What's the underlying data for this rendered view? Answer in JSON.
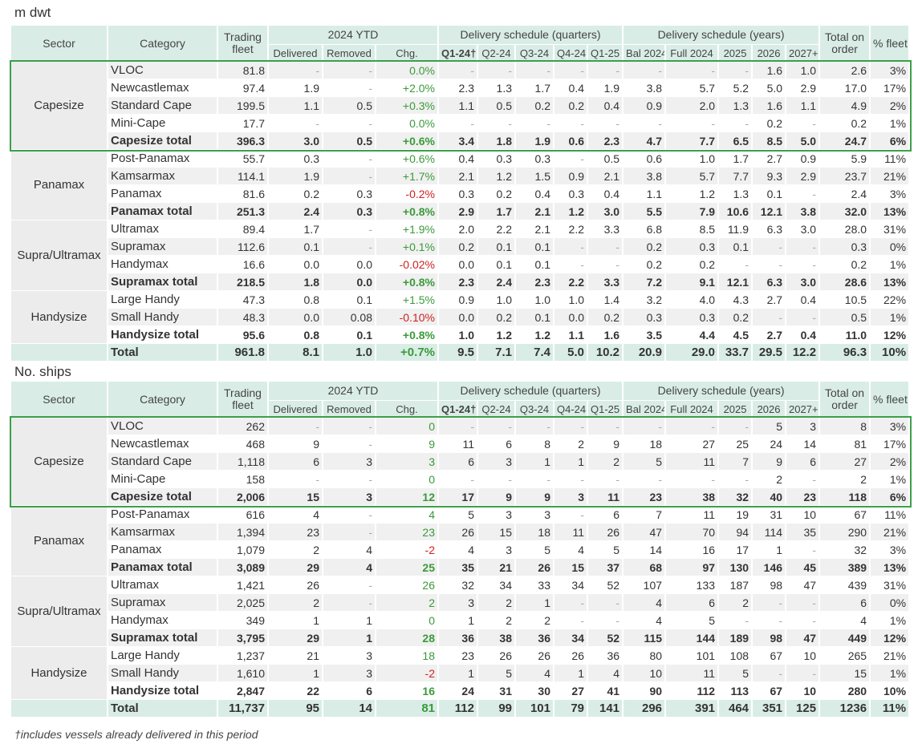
{
  "footnote": "†includes vessels already delivered in this period",
  "columns": {
    "sector": "Sector",
    "category": "Category",
    "trading": "Trading fleet",
    "ytd": "2024 YTD",
    "quarters": "Delivery schedule (quarters)",
    "years": "Delivery schedule (years)",
    "total_order": "Total on order",
    "pct": "% fleet",
    "sub": [
      "Delivered",
      "Removed",
      "Chg.",
      "Q1-24†",
      "Q2-24",
      "Q3-24",
      "Q4-24",
      "Q1-25",
      "Bal 2024",
      "Full 2024",
      "2025",
      "2026",
      "2027+"
    ]
  },
  "tables": [
    {
      "title": "m dwt",
      "groups": [
        {
          "sector": "Capesize",
          "rows": [
            {
              "category": "VLOC",
              "cells": [
                "81.8",
                "-",
                "-",
                "0.0%",
                "-",
                "-",
                "-",
                "-",
                "-",
                "-",
                "-",
                "-",
                "1.6",
                "1.0",
                "2.6",
                "3%"
              ]
            },
            {
              "category": "Newcastlemax",
              "cells": [
                "97.4",
                "1.9",
                "-",
                "+2.0%",
                "2.3",
                "1.3",
                "1.7",
                "0.4",
                "1.9",
                "3.8",
                "5.7",
                "5.2",
                "5.0",
                "2.9",
                "17.0",
                "17%"
              ]
            },
            {
              "category": "Standard Cape",
              "cells": [
                "199.5",
                "1.1",
                "0.5",
                "+0.3%",
                "1.1",
                "0.5",
                "0.2",
                "0.2",
                "0.4",
                "0.9",
                "2.0",
                "1.3",
                "1.6",
                "1.1",
                "4.9",
                "2%"
              ]
            },
            {
              "category": "Mini-Cape",
              "cells": [
                "17.7",
                "-",
                "-",
                "0.0%",
                "-",
                "-",
                "-",
                "-",
                "-",
                "-",
                "-",
                "-",
                "0.2",
                "-",
                "0.2",
                "1%"
              ]
            },
            {
              "category": "Capesize total",
              "cells": [
                "396.3",
                "3.0",
                "0.5",
                "+0.6%",
                "3.4",
                "1.8",
                "1.9",
                "0.6",
                "2.3",
                "4.7",
                "7.7",
                "6.5",
                "8.5",
                "5.0",
                "24.7",
                "6%"
              ]
            }
          ]
        },
        {
          "sector": "Panamax",
          "rows": [
            {
              "category": "Post-Panamax",
              "cells": [
                "55.7",
                "0.3",
                "-",
                "+0.6%",
                "0.4",
                "0.3",
                "0.3",
                "-",
                "0.5",
                "0.6",
                "1.0",
                "1.7",
                "2.7",
                "0.9",
                "5.9",
                "11%"
              ]
            },
            {
              "category": "Kamsarmax",
              "cells": [
                "114.1",
                "1.9",
                "-",
                "+1.7%",
                "2.1",
                "1.2",
                "1.5",
                "0.9",
                "2.1",
                "3.8",
                "5.7",
                "7.7",
                "9.3",
                "2.9",
                "23.7",
                "21%"
              ]
            },
            {
              "category": "Panamax",
              "cells": [
                "81.6",
                "0.2",
                "0.3",
                "-0.2%",
                "0.3",
                "0.2",
                "0.4",
                "0.3",
                "0.4",
                "1.1",
                "1.2",
                "1.3",
                "0.1",
                "-",
                "2.4",
                "3%"
              ]
            },
            {
              "category": "Panamax total",
              "cells": [
                "251.3",
                "2.4",
                "0.3",
                "+0.8%",
                "2.9",
                "1.7",
                "2.1",
                "1.2",
                "3.0",
                "5.5",
                "7.9",
                "10.6",
                "12.1",
                "3.8",
                "32.0",
                "13%"
              ]
            }
          ]
        },
        {
          "sector": "Supra/Ultramax",
          "rows": [
            {
              "category": "Ultramax",
              "cells": [
                "89.4",
                "1.7",
                "-",
                "+1.9%",
                "2.0",
                "2.2",
                "2.1",
                "2.2",
                "3.3",
                "6.8",
                "8.5",
                "11.9",
                "6.3",
                "3.0",
                "28.0",
                "31%"
              ]
            },
            {
              "category": "Supramax",
              "cells": [
                "112.6",
                "0.1",
                "-",
                "+0.1%",
                "0.2",
                "0.1",
                "0.1",
                "-",
                "-",
                "0.2",
                "0.3",
                "0.1",
                "-",
                "-",
                "0.3",
                "0%"
              ]
            },
            {
              "category": "Handymax",
              "cells": [
                "16.6",
                "0.0",
                "0.0",
                "-0.02%",
                "0.0",
                "0.1",
                "0.1",
                "-",
                "-",
                "0.2",
                "0.2",
                "-",
                "-",
                "-",
                "0.2",
                "1%"
              ]
            },
            {
              "category": "Supramax total",
              "cells": [
                "218.5",
                "1.8",
                "0.0",
                "+0.8%",
                "2.3",
                "2.4",
                "2.3",
                "2.2",
                "3.3",
                "7.2",
                "9.1",
                "12.1",
                "6.3",
                "3.0",
                "28.6",
                "13%"
              ]
            }
          ]
        },
        {
          "sector": "Handysize",
          "rows": [
            {
              "category": "Large Handy",
              "cells": [
                "47.3",
                "0.8",
                "0.1",
                "+1.5%",
                "0.9",
                "1.0",
                "1.0",
                "1.0",
                "1.4",
                "3.2",
                "4.0",
                "4.3",
                "2.7",
                "0.4",
                "10.5",
                "22%"
              ]
            },
            {
              "category": "Small Handy",
              "cells": [
                "48.3",
                "0.0",
                "0.08",
                "-0.10%",
                "0.0",
                "0.2",
                "0.1",
                "0.0",
                "0.2",
                "0.3",
                "0.3",
                "0.2",
                "-",
                "-",
                "0.5",
                "1%"
              ]
            },
            {
              "category": "Handysize total",
              "cells": [
                "95.6",
                "0.8",
                "0.1",
                "+0.8%",
                "1.0",
                "1.2",
                "1.2",
                "1.1",
                "1.6",
                "3.5",
                "4.4",
                "4.5",
                "2.7",
                "0.4",
                "11.0",
                "12%"
              ]
            }
          ]
        }
      ],
      "total": {
        "category": "Total",
        "cells": [
          "961.8",
          "8.1",
          "1.0",
          "+0.7%",
          "9.5",
          "7.1",
          "7.4",
          "5.0",
          "10.2",
          "20.9",
          "29.0",
          "33.7",
          "29.5",
          "12.2",
          "96.3",
          "10%"
        ]
      }
    },
    {
      "title": "No. ships",
      "groups": [
        {
          "sector": "Capesize",
          "rows": [
            {
              "category": "VLOC",
              "cells": [
                "262",
                "-",
                "-",
                "0",
                "-",
                "-",
                "-",
                "-",
                "-",
                "-",
                "-",
                "-",
                "5",
                "3",
                "8",
                "3%"
              ]
            },
            {
              "category": "Newcastlemax",
              "cells": [
                "468",
                "9",
                "-",
                "9",
                "11",
                "6",
                "8",
                "2",
                "9",
                "18",
                "27",
                "25",
                "24",
                "14",
                "81",
                "17%"
              ]
            },
            {
              "category": "Standard Cape",
              "cells": [
                "1,118",
                "6",
                "3",
                "3",
                "6",
                "3",
                "1",
                "1",
                "2",
                "5",
                "11",
                "7",
                "9",
                "6",
                "27",
                "2%"
              ]
            },
            {
              "category": "Mini-Cape",
              "cells": [
                "158",
                "-",
                "-",
                "0",
                "-",
                "-",
                "-",
                "-",
                "-",
                "-",
                "-",
                "-",
                "2",
                "-",
                "2",
                "1%"
              ]
            },
            {
              "category": "Capesize total",
              "cells": [
                "2,006",
                "15",
                "3",
                "12",
                "17",
                "9",
                "9",
                "3",
                "11",
                "23",
                "38",
                "32",
                "40",
                "23",
                "118",
                "6%"
              ]
            }
          ]
        },
        {
          "sector": "Panamax",
          "rows": [
            {
              "category": "Post-Panamax",
              "cells": [
                "616",
                "4",
                "-",
                "4",
                "5",
                "3",
                "3",
                "-",
                "6",
                "7",
                "11",
                "19",
                "31",
                "10",
                "67",
                "11%"
              ]
            },
            {
              "category": "Kamsarmax",
              "cells": [
                "1,394",
                "23",
                "-",
                "23",
                "26",
                "15",
                "18",
                "11",
                "26",
                "47",
                "70",
                "94",
                "114",
                "35",
                "290",
                "21%"
              ]
            },
            {
              "category": "Panamax",
              "cells": [
                "1,079",
                "2",
                "4",
                "-2",
                "4",
                "3",
                "5",
                "4",
                "5",
                "14",
                "16",
                "17",
                "1",
                "-",
                "32",
                "3%"
              ]
            },
            {
              "category": "Panamax total",
              "cells": [
                "3,089",
                "29",
                "4",
                "25",
                "35",
                "21",
                "26",
                "15",
                "37",
                "68",
                "97",
                "130",
                "146",
                "45",
                "389",
                "13%"
              ]
            }
          ]
        },
        {
          "sector": "Supra/Ultramax",
          "rows": [
            {
              "category": "Ultramax",
              "cells": [
                "1,421",
                "26",
                "-",
                "26",
                "32",
                "34",
                "33",
                "34",
                "52",
                "107",
                "133",
                "187",
                "98",
                "47",
                "439",
                "31%"
              ]
            },
            {
              "category": "Supramax",
              "cells": [
                "2,025",
                "2",
                "-",
                "2",
                "3",
                "2",
                "1",
                "-",
                "-",
                "4",
                "6",
                "2",
                "-",
                "-",
                "6",
                "0%"
              ]
            },
            {
              "category": "Handymax",
              "cells": [
                "349",
                "1",
                "1",
                "0",
                "1",
                "2",
                "2",
                "-",
                "-",
                "4",
                "5",
                "-",
                "-",
                "-",
                "4",
                "1%"
              ]
            },
            {
              "category": "Supramax total",
              "cells": [
                "3,795",
                "29",
                "1",
                "28",
                "36",
                "38",
                "36",
                "34",
                "52",
                "115",
                "144",
                "189",
                "98",
                "47",
                "449",
                "12%"
              ]
            }
          ]
        },
        {
          "sector": "Handysize",
          "rows": [
            {
              "category": "Large Handy",
              "cells": [
                "1,237",
                "21",
                "3",
                "18",
                "23",
                "26",
                "26",
                "26",
                "36",
                "80",
                "101",
                "108",
                "67",
                "10",
                "265",
                "21%"
              ]
            },
            {
              "category": "Small Handy",
              "cells": [
                "1,610",
                "1",
                "3",
                "-2",
                "1",
                "5",
                "4",
                "1",
                "4",
                "10",
                "11",
                "5",
                "-",
                "-",
                "15",
                "1%"
              ]
            },
            {
              "category": "Handysize total",
              "cells": [
                "2,847",
                "22",
                "6",
                "16",
                "24",
                "31",
                "30",
                "27",
                "41",
                "90",
                "112",
                "113",
                "67",
                "10",
                "280",
                "10%"
              ]
            }
          ]
        }
      ],
      "total": {
        "category": "Total",
        "cells": [
          "11,737",
          "95",
          "14",
          "81",
          "112",
          "99",
          "101",
          "79",
          "141",
          "296",
          "391",
          "464",
          "351",
          "125",
          "1236",
          "11%"
        ]
      }
    }
  ]
}
